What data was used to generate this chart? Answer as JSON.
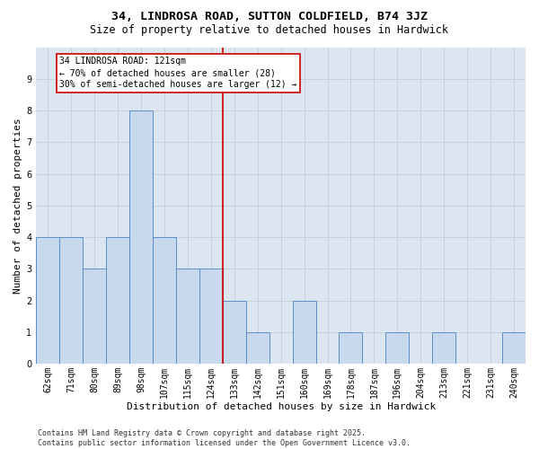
{
  "title1": "34, LINDROSA ROAD, SUTTON COLDFIELD, B74 3JZ",
  "title2": "Size of property relative to detached houses in Hardwick",
  "xlabel": "Distribution of detached houses by size in Hardwick",
  "ylabel": "Number of detached properties",
  "categories": [
    "62sqm",
    "71sqm",
    "80sqm",
    "89sqm",
    "98sqm",
    "107sqm",
    "115sqm",
    "124sqm",
    "133sqm",
    "142sqm",
    "151sqm",
    "160sqm",
    "169sqm",
    "178sqm",
    "187sqm",
    "196sqm",
    "204sqm",
    "213sqm",
    "221sqm",
    "231sqm",
    "240sqm"
  ],
  "values": [
    4,
    4,
    3,
    4,
    8,
    4,
    3,
    3,
    2,
    1,
    0,
    2,
    0,
    1,
    0,
    1,
    0,
    1,
    0,
    0,
    1
  ],
  "bar_color": "#c8d8ed",
  "bar_edge_color": "#5a8ec8",
  "vline_x": 7.5,
  "vline_color": "#cc0000",
  "annotation_text": "34 LINDROSA ROAD: 121sqm\n← 70% of detached houses are smaller (28)\n30% of semi-detached houses are larger (12) →",
  "annotation_box_color": "#ffffff",
  "annotation_box_edge_color": "#cc0000",
  "ylim": [
    0,
    10
  ],
  "yticks": [
    0,
    1,
    2,
    3,
    4,
    5,
    6,
    7,
    8,
    9,
    10
  ],
  "grid_color": "#c8d0dc",
  "plot_bg_color": "#dce6f0",
  "fig_bg_color": "#ffffff",
  "footer_text": "Contains HM Land Registry data © Crown copyright and database right 2025.\nContains public sector information licensed under the Open Government Licence v3.0.",
  "title1_fontsize": 9.5,
  "title2_fontsize": 8.5,
  "xlabel_fontsize": 8,
  "ylabel_fontsize": 8,
  "tick_fontsize": 7,
  "annotation_fontsize": 7,
  "footer_fontsize": 6
}
